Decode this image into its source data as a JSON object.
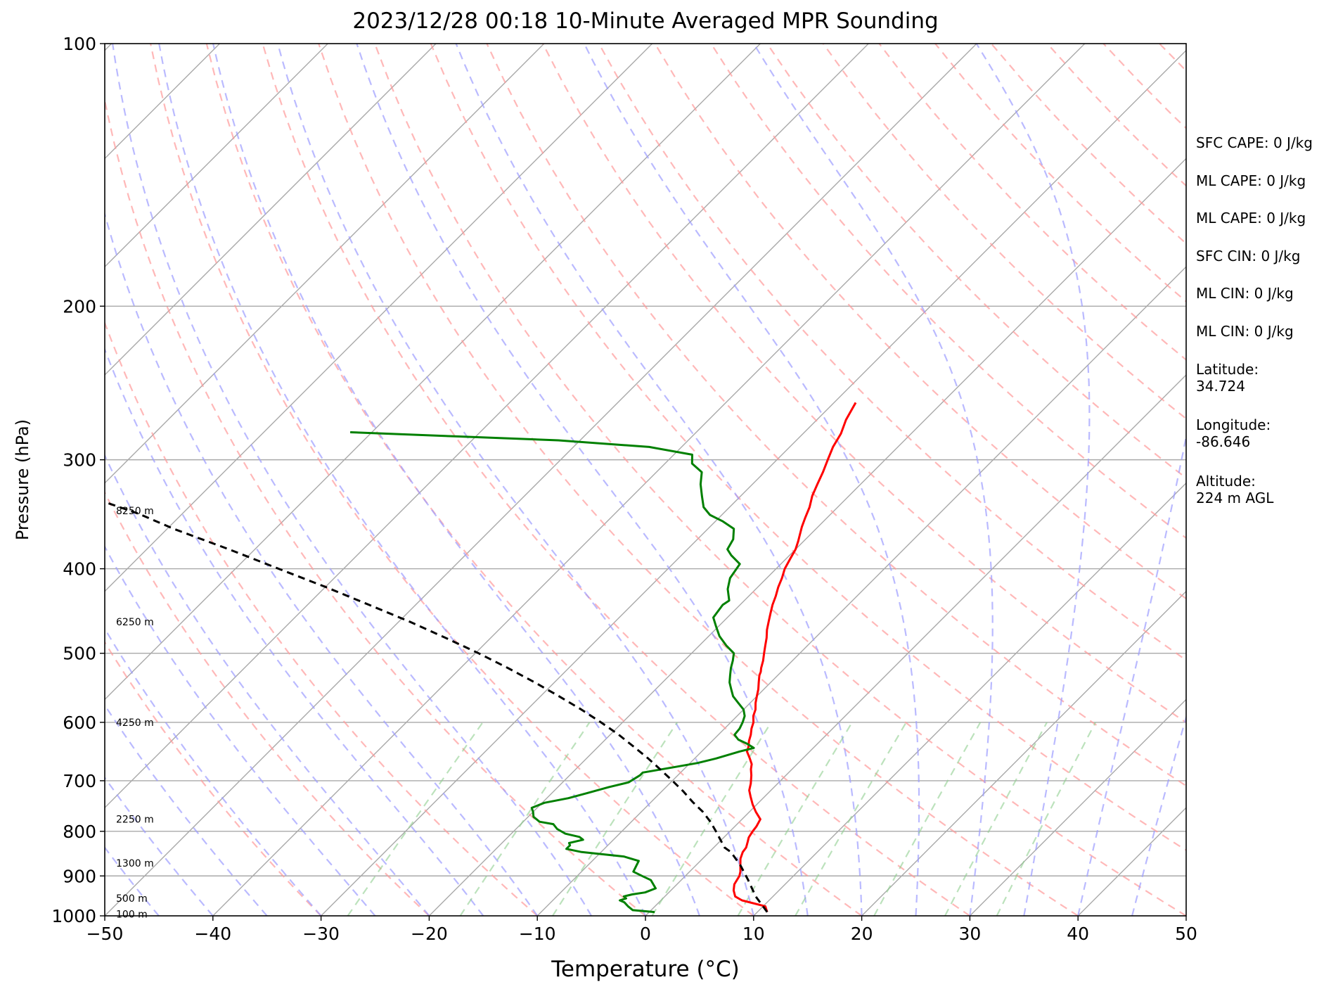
{
  "chart_data": {
    "type": "line",
    "title": "2023/12/28 00:18 10-Minute Averaged MPR Sounding",
    "xlabel": "Temperature (°C)",
    "ylabel": "Pressure (hPa)",
    "xlim": [
      -50,
      50
    ],
    "ylim": [
      1000,
      100
    ],
    "y_scale": "log",
    "skew": "skew-T log-P",
    "grid": true,
    "x_ticks": [
      "−50",
      "−40",
      "−30",
      "−20",
      "−10",
      "0",
      "10",
      "20",
      "30",
      "40",
      "50"
    ],
    "y_ticks": [
      "100",
      "200",
      "300",
      "400",
      "500",
      "600",
      "700",
      "800",
      "900",
      "1000"
    ],
    "height_labels": [
      {
        "p": 995,
        "label": "100 m"
      },
      {
        "p": 955,
        "label": "500 m"
      },
      {
        "p": 870,
        "label": "1300 m"
      },
      {
        "p": 775,
        "label": "2250 m"
      },
      {
        "p": 600,
        "label": "4250 m"
      },
      {
        "p": 460,
        "label": "6250 m"
      },
      {
        "p": 343,
        "label": "8250 m"
      }
    ],
    "series": [
      {
        "role": "temperature",
        "color": "#ff0000",
        "points": [
          [
            10.9,
            990
          ],
          [
            10.2,
            975
          ],
          [
            7.5,
            960
          ],
          [
            6.5,
            950
          ],
          [
            5.8,
            935
          ],
          [
            5.3,
            920
          ],
          [
            5.0,
            900
          ],
          [
            4.7,
            890
          ],
          [
            4.1,
            875
          ],
          [
            3.5,
            860
          ],
          [
            3.1,
            845
          ],
          [
            3.0,
            835
          ],
          [
            2.6,
            822
          ],
          [
            2.3,
            813
          ],
          [
            2.1,
            800
          ],
          [
            2.0,
            790
          ],
          [
            1.7,
            775
          ],
          [
            0.6,
            760
          ],
          [
            -0.4,
            745
          ],
          [
            -1.3,
            730
          ],
          [
            -2.0,
            718
          ],
          [
            -2.5,
            705
          ],
          [
            -3.2,
            690
          ],
          [
            -3.8,
            679
          ],
          [
            -4.2,
            670
          ],
          [
            -4.9,
            660
          ],
          [
            -5.8,
            648
          ],
          [
            -6.1,
            640
          ],
          [
            -6.6,
            630
          ],
          [
            -7.0,
            620
          ],
          [
            -7.5,
            610
          ],
          [
            -7.9,
            600
          ],
          [
            -8.5,
            590
          ],
          [
            -8.9,
            580
          ],
          [
            -9.5,
            570
          ],
          [
            -10.0,
            560
          ],
          [
            -10.5,
            550
          ],
          [
            -11.1,
            540
          ],
          [
            -11.7,
            530
          ],
          [
            -11.9,
            525
          ],
          [
            -12.2,
            520
          ],
          [
            -12.7,
            510
          ],
          [
            -13.3,
            500
          ],
          [
            -13.9,
            490
          ],
          [
            -14.5,
            480
          ],
          [
            -15.2,
            470
          ],
          [
            -15.8,
            460
          ],
          [
            -16.4,
            450
          ],
          [
            -17.0,
            440
          ],
          [
            -17.5,
            430
          ],
          [
            -18.1,
            420
          ],
          [
            -18.6,
            410
          ],
          [
            -19.2,
            400
          ],
          [
            -19.6,
            390
          ],
          [
            -20.0,
            380
          ],
          [
            -20.5,
            372
          ],
          [
            -21.0,
            365
          ],
          [
            -21.5,
            358
          ],
          [
            -22.0,
            350
          ],
          [
            -22.6,
            340
          ],
          [
            -23.4,
            330
          ],
          [
            -24.0,
            320
          ],
          [
            -24.6,
            310
          ],
          [
            -25.3,
            300
          ],
          [
            -26.0,
            290
          ],
          [
            -26.5,
            280
          ],
          [
            -27.3,
            270
          ],
          [
            -28.0,
            258
          ]
        ]
      },
      {
        "role": "dewpoint",
        "color": "#008000",
        "points": [
          [
            0.5,
            990
          ],
          [
            -1.7,
            985
          ],
          [
            -2.5,
            975
          ],
          [
            -3.2,
            965
          ],
          [
            -3.8,
            960
          ],
          [
            -3.4,
            955
          ],
          [
            -3.8,
            950
          ],
          [
            -3.2,
            945
          ],
          [
            -2.2,
            940
          ],
          [
            -1.6,
            930
          ],
          [
            -1.9,
            925
          ],
          [
            -2.8,
            910
          ],
          [
            -4.0,
            900
          ],
          [
            -5.2,
            890
          ],
          [
            -5.4,
            880
          ],
          [
            -5.7,
            865
          ],
          [
            -7.5,
            855
          ],
          [
            -11.8,
            845
          ],
          [
            -13.5,
            838
          ],
          [
            -13.5,
            830
          ],
          [
            -13.8,
            825
          ],
          [
            -12.8,
            818
          ],
          [
            -13.4,
            812
          ],
          [
            -15.0,
            805
          ],
          [
            -16.2,
            795
          ],
          [
            -17.0,
            785
          ],
          [
            -18.5,
            780
          ],
          [
            -19.5,
            770
          ],
          [
            -20.0,
            760
          ],
          [
            -20.5,
            752
          ],
          [
            -19.8,
            742
          ],
          [
            -18.0,
            733
          ],
          [
            -16.7,
            723
          ],
          [
            -15.3,
            712
          ],
          [
            -13.9,
            703
          ],
          [
            -13.5,
            690
          ],
          [
            -13.5,
            685
          ],
          [
            -11.0,
            675
          ],
          [
            -9.3,
            668
          ],
          [
            -8.0,
            660
          ],
          [
            -6.5,
            648
          ],
          [
            -5.5,
            642
          ],
          [
            -6.5,
            635
          ],
          [
            -7.7,
            628
          ],
          [
            -8.5,
            620
          ],
          [
            -8.6,
            610
          ],
          [
            -8.9,
            600
          ],
          [
            -9.3,
            590
          ],
          [
            -10.0,
            580
          ],
          [
            -11.1,
            570
          ],
          [
            -12.2,
            560
          ],
          [
            -13.0,
            550
          ],
          [
            -13.8,
            540
          ],
          [
            -14.4,
            530
          ],
          [
            -15.0,
            520
          ],
          [
            -15.5,
            510
          ],
          [
            -16.1,
            500
          ],
          [
            -17.5,
            490
          ],
          [
            -19.0,
            478
          ],
          [
            -20.3,
            465
          ],
          [
            -21.3,
            455
          ],
          [
            -21.6,
            440
          ],
          [
            -21.4,
            435
          ],
          [
            -22.6,
            422
          ],
          [
            -23.4,
            410
          ],
          [
            -23.8,
            395
          ],
          [
            -25.4,
            386
          ],
          [
            -26.3,
            380
          ],
          [
            -26.7,
            370
          ],
          [
            -27.6,
            360
          ],
          [
            -29.3,
            353
          ],
          [
            -31.1,
            347
          ],
          [
            -32.4,
            340
          ],
          [
            -33.6,
            330
          ],
          [
            -34.8,
            320
          ],
          [
            -35.8,
            310
          ],
          [
            -37.5,
            303
          ],
          [
            -38.3,
            296
          ],
          [
            -43.0,
            290
          ],
          [
            -52.0,
            285
          ],
          [
            -62.0,
            282
          ],
          [
            -72.0,
            279
          ]
        ]
      },
      {
        "role": "parcel",
        "color": "#000000",
        "dashed": true,
        "points": [
          [
            10.9,
            990
          ],
          [
            8.4,
            950
          ],
          [
            6.2,
            910
          ],
          [
            4.1,
            875
          ],
          [
            2.0,
            845
          ],
          [
            1.0,
            835
          ],
          [
            -1.3,
            800
          ],
          [
            -2.7,
            780
          ],
          [
            -4.3,
            760
          ],
          [
            -6.2,
            740
          ],
          [
            -8.0,
            720
          ],
          [
            -10.0,
            700
          ],
          [
            -12.1,
            680
          ],
          [
            -14.3,
            660
          ],
          [
            -16.7,
            640
          ],
          [
            -19.2,
            620
          ],
          [
            -22.0,
            600
          ],
          [
            -25.0,
            580
          ],
          [
            -28.3,
            560
          ],
          [
            -31.8,
            540
          ],
          [
            -35.6,
            520
          ],
          [
            -39.7,
            500
          ],
          [
            -44.2,
            480
          ],
          [
            -49.0,
            460
          ],
          [
            -54.3,
            440
          ],
          [
            -59.9,
            420
          ],
          [
            -66.0,
            400
          ],
          [
            -72.4,
            380
          ],
          [
            -79.4,
            360
          ],
          [
            -84.0,
            346
          ],
          [
            -88.0,
            336
          ],
          [
            -93.0,
            325
          ],
          [
            -98.0,
            315
          ],
          [
            -103.0,
            305
          ],
          [
            -108.0,
            296
          ],
          [
            -113.0,
            286
          ],
          [
            -118.0,
            277
          ],
          [
            -123.0,
            268
          ],
          [
            -128.0,
            259
          ]
        ]
      }
    ]
  },
  "info_panel": [
    "SFC CAPE: 0 J/kg",
    "ML CAPE: 0 J/kg",
    "ML CAPE: 0 J/kg",
    "SFC CIN: 0 J/kg",
    "ML CIN: 0 J/kg",
    "ML CIN: 0 J/kg",
    "Latitude:\n34.724",
    "Longitude:\n-86.646",
    "Altitude:\n224 m AGL"
  ]
}
